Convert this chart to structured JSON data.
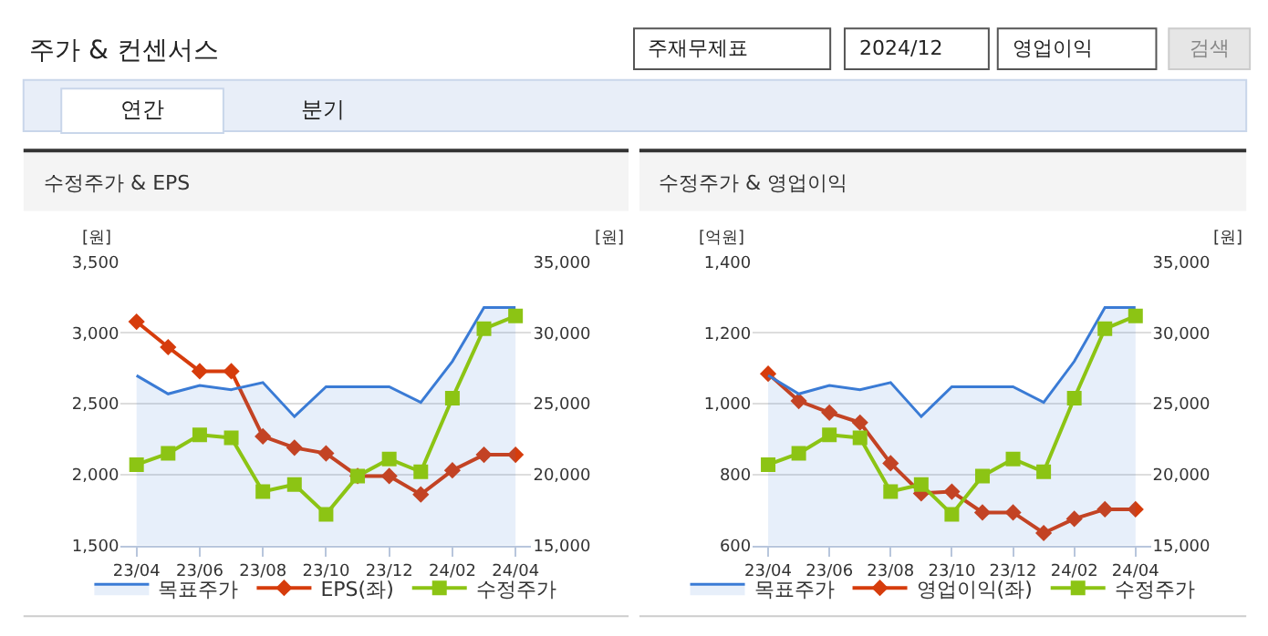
{
  "chart_data": [
    {
      "type": "other",
      "title": "주가 & 컨센서스",
      "annotations": [
        "주재무제표",
        "2024/12",
        "영업이익",
        "검색",
        "연간",
        "분기"
      ]
    },
    {
      "type": "line",
      "title": "수정주가 & EPS",
      "ylabel": "[원]",
      "y2label": "[원]",
      "categories": [
        "23/04",
        null,
        "23/06",
        null,
        "23/08",
        null,
        "23/10",
        null,
        "23/12",
        null,
        "24/02",
        null,
        "24/04"
      ],
      "ylim": [
        1500,
        3500
      ],
      "yticks": [
        {
          "value": 1500,
          "label": "1,500"
        },
        {
          "value": 2000,
          "label": "2,000"
        },
        {
          "value": 2500,
          "label": "2,500"
        },
        {
          "value": 3000,
          "label": "3,000"
        },
        {
          "value": 3500,
          "label": "3,500"
        }
      ],
      "y2lim": [
        15000,
        35000
      ],
      "y2ticks": [
        {
          "value": 15000,
          "label": "15,000"
        },
        {
          "value": 20000,
          "label": "20,000"
        },
        {
          "value": 25000,
          "label": "25,000"
        },
        {
          "value": 30000,
          "label": "30,000"
        },
        {
          "value": 35000,
          "label": "35,000"
        }
      ],
      "grid": "y",
      "legend": "bottom",
      "series": [
        {
          "name": "목표주가",
          "type": "area",
          "axis": "y2",
          "color": "#3a7bd5",
          "marker": "none",
          "values": [
            27000,
            25700,
            26300,
            26000,
            26500,
            24100,
            26200,
            26200,
            26200,
            25100,
            28000,
            31800,
            31800
          ]
        },
        {
          "name": "EPS(좌)",
          "type": "line",
          "color": "#d63c0c",
          "marker": "diamond",
          "values": [
            3080,
            2900,
            2730,
            2730,
            2270,
            2190,
            2150,
            1990,
            1990,
            1860,
            2030,
            2140,
            2140
          ]
        },
        {
          "name": "수정주가",
          "type": "line",
          "axis": "y2",
          "color": "#8cc414",
          "marker": "square",
          "values": [
            20700,
            21500,
            22800,
            22600,
            18800,
            19300,
            17200,
            19900,
            21100,
            20200,
            25400,
            30300,
            31200
          ]
        }
      ]
    },
    {
      "type": "line",
      "title": "수정주가 & 영업이익",
      "ylabel": "[억원]",
      "y2label": "[원]",
      "categories": [
        "23/04",
        null,
        "23/06",
        null,
        "23/08",
        null,
        "23/10",
        null,
        "23/12",
        null,
        "24/02",
        null,
        "24/04"
      ],
      "ylim": [
        600,
        1400
      ],
      "yticks": [
        600,
        800,
        {
          "value": 1000,
          "label": "1,000"
        },
        {
          "value": 1200,
          "label": "1,200"
        },
        {
          "value": 1400,
          "label": "1,400"
        }
      ],
      "y2lim": [
        15000,
        35000
      ],
      "y2ticks": [
        {
          "value": 15000,
          "label": "15,000"
        },
        {
          "value": 20000,
          "label": "20,000"
        },
        {
          "value": 25000,
          "label": "25,000"
        },
        {
          "value": 30000,
          "label": "30,000"
        },
        {
          "value": 35000,
          "label": "35,000"
        }
      ],
      "grid": "y",
      "legend": "bottom",
      "series": [
        {
          "name": "목표주가",
          "type": "area",
          "axis": "y2",
          "color": "#3a7bd5",
          "marker": "none",
          "values": [
            27000,
            25700,
            26300,
            26000,
            26500,
            24100,
            26200,
            26200,
            26200,
            25100,
            28000,
            31800,
            31800
          ]
        },
        {
          "name": "영업이익(좌)",
          "type": "line",
          "color": "#d63c0c",
          "marker": "diamond",
          "values": [
            1085,
            1008,
            975,
            947,
            832,
            747,
            752,
            693,
            693,
            635,
            675,
            702,
            702
          ]
        },
        {
          "name": "수정주가",
          "type": "line",
          "axis": "y2",
          "color": "#8cc414",
          "marker": "square",
          "values": [
            20700,
            21500,
            22800,
            22600,
            18800,
            19300,
            17200,
            19900,
            21100,
            20200,
            25400,
            30300,
            31200
          ]
        }
      ]
    }
  ]
}
